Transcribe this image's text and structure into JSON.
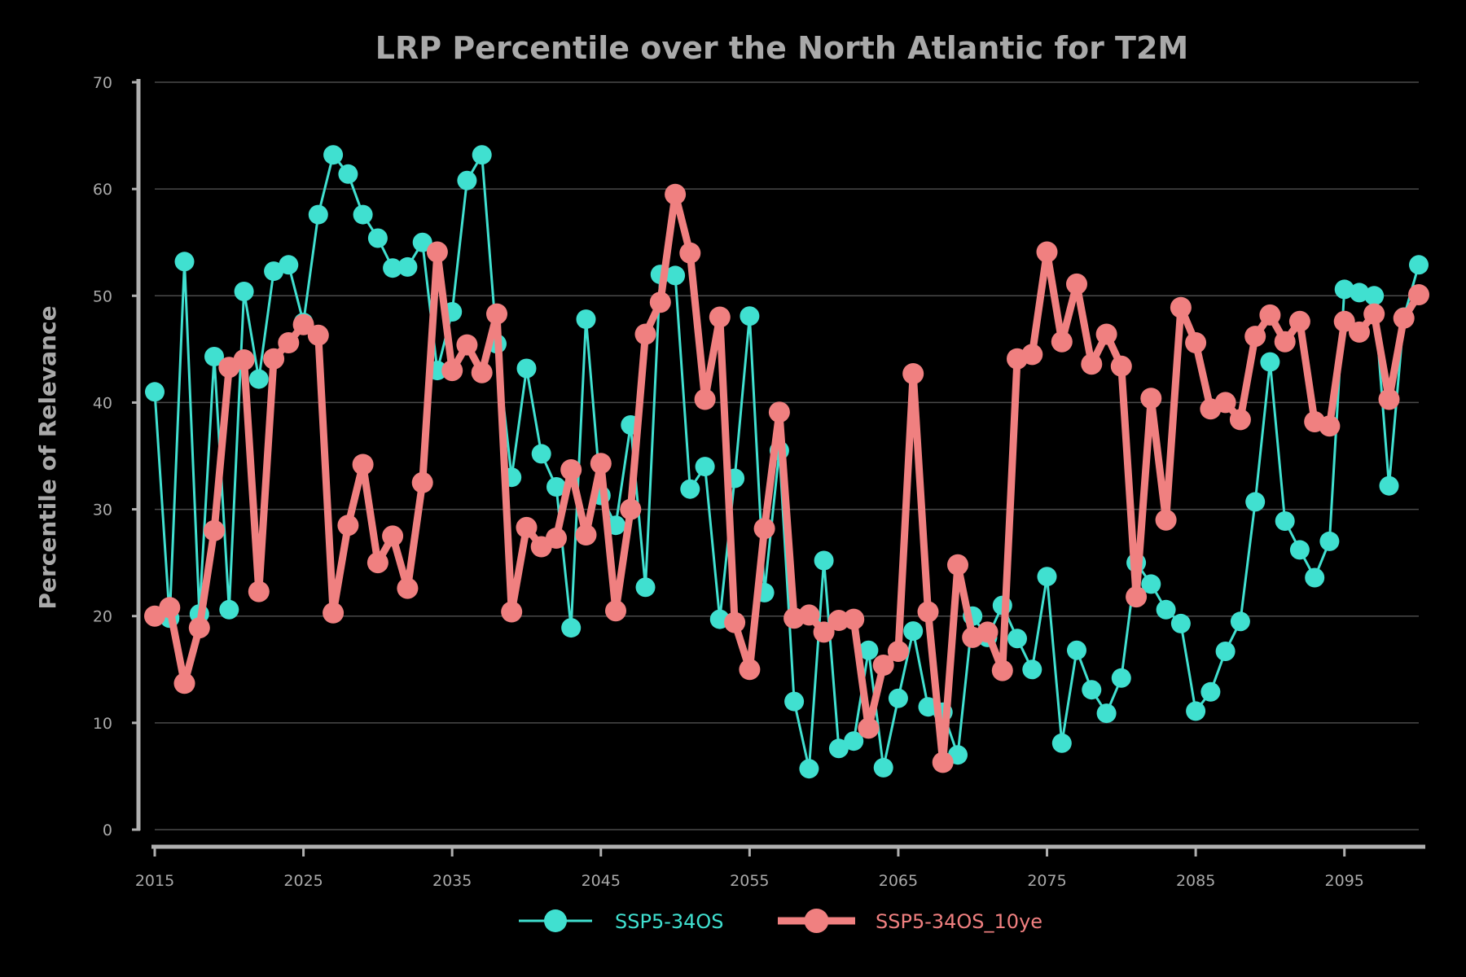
{
  "chart_data": {
    "type": "line",
    "title": "LRP Percentile over the North Atlantic for T2M",
    "xlabel": "",
    "ylabel": "Percentile of Relevance",
    "xlim": [
      2015,
      2100
    ],
    "ylim": [
      0,
      70
    ],
    "xticks": [
      "2015",
      "2025",
      "2035",
      "2045",
      "2055",
      "2065",
      "2075",
      "2085",
      "2095"
    ],
    "yticks": [
      "0",
      "10",
      "20",
      "30",
      "40",
      "50",
      "60",
      "70"
    ],
    "grid": "horizontal",
    "legend_position": "bottom",
    "x": [
      2015,
      2016,
      2017,
      2018,
      2019,
      2020,
      2021,
      2022,
      2023,
      2024,
      2025,
      2026,
      2027,
      2028,
      2029,
      2030,
      2031,
      2032,
      2033,
      2034,
      2035,
      2036,
      2037,
      2038,
      2039,
      2040,
      2041,
      2042,
      2043,
      2044,
      2045,
      2046,
      2047,
      2048,
      2049,
      2050,
      2051,
      2052,
      2053,
      2054,
      2055,
      2056,
      2057,
      2058,
      2059,
      2060,
      2061,
      2062,
      2063,
      2064,
      2065,
      2066,
      2067,
      2068,
      2069,
      2070,
      2071,
      2072,
      2073,
      2074,
      2075,
      2076,
      2077,
      2078,
      2079,
      2080,
      2081,
      2082,
      2083,
      2084,
      2085,
      2086,
      2087,
      2088,
      2089,
      2090,
      2091,
      2092,
      2093,
      2094,
      2095,
      2096,
      2097,
      2098,
      2099,
      2100
    ],
    "series": [
      {
        "name": "SSP5-34OS",
        "color": "#40e0d0",
        "values": [
          41,
          19.8,
          53.2,
          20.2,
          44.3,
          20.6,
          50.4,
          42.2,
          52.3,
          52.9,
          47.5,
          57.6,
          63.2,
          61.4,
          57.6,
          55.4,
          52.6,
          52.7,
          55,
          43,
          48.5,
          60.8,
          63.2,
          45.5,
          33,
          43.2,
          35.2,
          32.1,
          18.9,
          47.8,
          31.3,
          28.5,
          37.9,
          22.7,
          52,
          51.9,
          31.9,
          34,
          19.7,
          32.9,
          48.1,
          22.2,
          35.5,
          12,
          5.7,
          25.2,
          7.6,
          8.3,
          16.8,
          5.8,
          12.3,
          18.6,
          11.5,
          11,
          7,
          20,
          18,
          21,
          17.9,
          15,
          23.7,
          8.1,
          16.8,
          13.1,
          10.9,
          14.2,
          25,
          23,
          20.6,
          19.3,
          11.1,
          12.9,
          16.7,
          19.5,
          30.7,
          43.8,
          28.9,
          26.2,
          23.6,
          27,
          50.6,
          50.3,
          50,
          32.2,
          48,
          52.9
        ]
      },
      {
        "name": "SSP5-34OS_10ye",
        "color": "#f08080",
        "values": [
          20,
          20.8,
          13.7,
          18.9,
          28,
          43.3,
          44,
          22.3,
          44.1,
          45.6,
          47.3,
          46.3,
          20.3,
          28.5,
          34.2,
          25,
          27.5,
          22.6,
          32.5,
          54.1,
          43,
          45.4,
          42.8,
          48.3,
          20.4,
          28.3,
          26.5,
          27.3,
          33.7,
          27.6,
          34.3,
          20.5,
          30,
          46.4,
          49.4,
          59.5,
          54,
          40.3,
          48,
          19.4,
          15,
          28.2,
          39.1,
          19.8,
          20.1,
          18.5,
          19.6,
          19.7,
          9.5,
          15.4,
          16.7,
          42.7,
          20.4,
          6.3,
          24.8,
          18,
          18.5,
          14.9,
          44.1,
          44.5,
          54.1,
          45.7,
          51.1,
          43.6,
          46.4,
          43.4,
          21.8,
          40.4,
          29,
          48.9,
          45.6,
          39.4,
          40,
          38.4,
          46.2,
          48.2,
          45.7,
          47.6,
          38.2,
          37.8,
          47.6,
          46.6,
          48.3,
          40.3,
          47.9,
          50.1
        ]
      }
    ]
  }
}
